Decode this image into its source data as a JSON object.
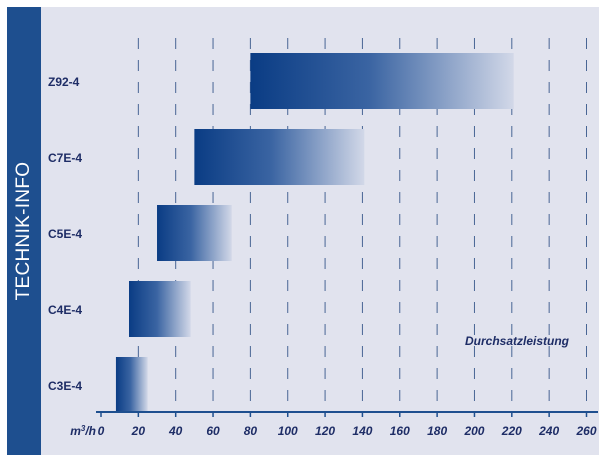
{
  "side_label": "TECHNIK-INFO",
  "chart_data": {
    "type": "bar",
    "orientation": "horizontal-range",
    "categories": [
      "Z92-4",
      "C7E-4",
      "C5E-4",
      "C4E-4",
      "C3E-4"
    ],
    "series": [
      {
        "values": [
          {
            "start": 80,
            "end": 221
          },
          {
            "start": 50,
            "end": 141
          },
          {
            "start": 30,
            "end": 70
          },
          {
            "start": 15,
            "end": 48
          },
          {
            "start": 8,
            "end": 25
          }
        ]
      }
    ],
    "x_ticks": [
      0,
      20,
      40,
      60,
      80,
      100,
      120,
      140,
      160,
      180,
      200,
      220,
      240,
      260
    ],
    "xlim": [
      0,
      260
    ],
    "x_unit_label": "m³/h",
    "annotation": "Durchsatzleistung",
    "grid": "vertical dashed",
    "colors": {
      "bar_start": "#0a3c84",
      "bar_end": "#d2d8e8",
      "grid": "#23467e",
      "axis": "#1e4f8f",
      "label": "#1e2d66"
    }
  }
}
